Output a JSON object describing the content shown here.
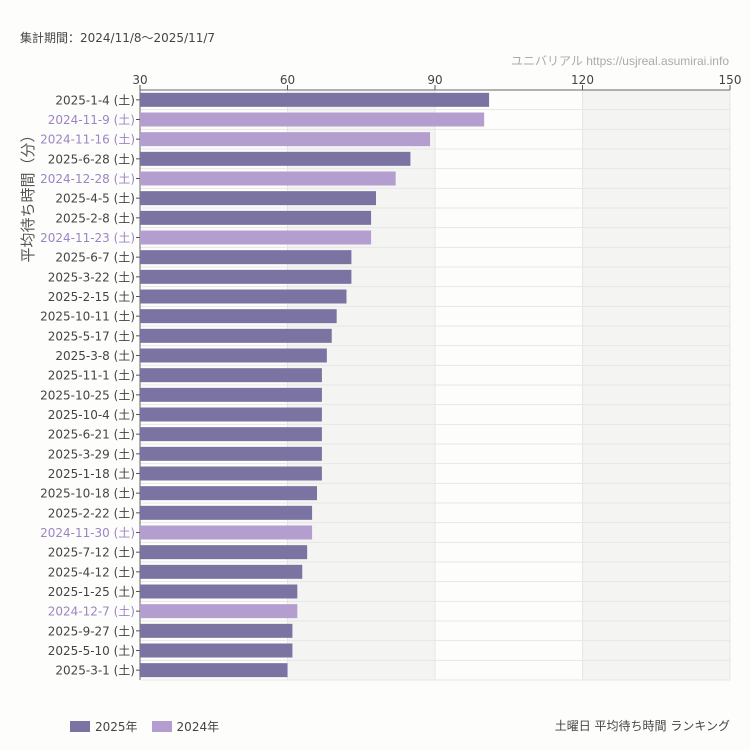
{
  "header": {
    "period": "集計期間：2024/11/8〜2025/11/7",
    "credit": "ユニバリアル https://usjreal.asumirai.info"
  },
  "footer": {
    "subtitle": "土曜日 平均待ち時間 ランキング"
  },
  "colors": {
    "2025": "#7b74a2",
    "2024": "#b39ecf",
    "band": "#f4f5f3",
    "grid": "#e6e6e6"
  },
  "chart_data": {
    "type": "bar",
    "orientation": "horizontal",
    "ylabel": "平均待ち時間（分）",
    "xlim": [
      30,
      150
    ],
    "xticks": [
      "30",
      "60",
      "90",
      "120",
      "150"
    ],
    "grid": true,
    "legend_placement": "bottom-left",
    "legend": [
      {
        "name": "2025年",
        "color": "#7b74a2"
      },
      {
        "name": "2024年",
        "color": "#b39ecf"
      }
    ],
    "categories": [
      "2025-1-4 (土)",
      "2024-11-9 (土)",
      "2024-11-16 (土)",
      "2025-6-28 (土)",
      "2024-12-28 (土)",
      "2025-4-5 (土)",
      "2025-2-8 (土)",
      "2024-11-23 (土)",
      "2025-6-7 (土)",
      "2025-3-22 (土)",
      "2025-2-15 (土)",
      "2025-10-11 (土)",
      "2025-5-17 (土)",
      "2025-3-8 (土)",
      "2025-11-1 (土)",
      "2025-10-25 (土)",
      "2025-10-4 (土)",
      "2025-6-21 (土)",
      "2025-3-29 (土)",
      "2025-1-18 (土)",
      "2025-10-18 (土)",
      "2025-2-22 (土)",
      "2024-11-30 (土)",
      "2025-7-12 (土)",
      "2025-4-12 (土)",
      "2025-1-25 (土)",
      "2024-12-7 (土)",
      "2025-9-27 (土)",
      "2025-5-10 (土)",
      "2025-3-1 (土)"
    ],
    "values": [
      101,
      100,
      89,
      85,
      82,
      78,
      77,
      77,
      73,
      73,
      72,
      70,
      69,
      68,
      67,
      67,
      67,
      67,
      67,
      67,
      66,
      65,
      65,
      64,
      63,
      62,
      62,
      61,
      61,
      60
    ],
    "series_year": [
      "2025",
      "2024",
      "2024",
      "2025",
      "2024",
      "2025",
      "2025",
      "2024",
      "2025",
      "2025",
      "2025",
      "2025",
      "2025",
      "2025",
      "2025",
      "2025",
      "2025",
      "2025",
      "2025",
      "2025",
      "2025",
      "2025",
      "2024",
      "2025",
      "2025",
      "2025",
      "2024",
      "2025",
      "2025",
      "2025"
    ]
  }
}
